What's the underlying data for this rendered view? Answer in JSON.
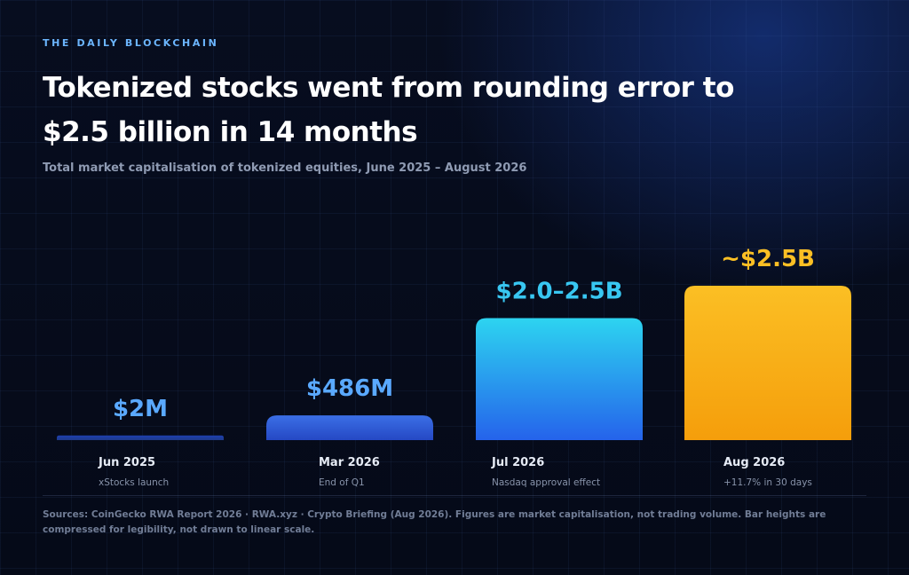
{
  "publication": "THE DAILY BLOCKCHAIN",
  "title_line1": "Tokenized stocks went from rounding error to",
  "title_line2": "$2.5 billion in 14 months",
  "subtitle": "Total market capitalisation of tokenized equities, June 2025 – August 2026",
  "sources": "Sources: CoinGecko RWA Report 2026 · RWA.xyz · Crypto Briefing (Aug 2026). Figures are market capitalisation, not trading volume. Bar heights are compressed for legibility, not drawn to linear scale.",
  "colors": {
    "background": "#060b1a",
    "blue_label": "#5aa9ff",
    "cyan_label": "#38c7f2",
    "gold_label": "#fbbf24"
  },
  "chart_data": {
    "type": "bar",
    "title": "Tokenized stocks went from rounding error to $2.5 billion in 14 months",
    "subtitle": "Total market capitalisation of tokenized equities, June 2025 – August 2026",
    "scale": "compressed, not linear",
    "categories": [
      "Jun 2025",
      "Mar 2026",
      "Jul 2026",
      "Aug 2026"
    ],
    "notes": [
      "xStocks launch",
      "End of Q1",
      "Nasdaq approval effect",
      "+11.7% in 30 days"
    ],
    "values_usd_millions": [
      2,
      486,
      2250,
      2500
    ],
    "data_labels": [
      "$2M",
      "$486M",
      "$2.0–2.5B",
      "~$2.5B"
    ],
    "display_levels": [
      0.03,
      0.16,
      0.79,
      1.0
    ],
    "bar_colors": [
      [
        "#1e40af",
        "#1e3a8a"
      ],
      [
        "#3b6fe6",
        "#2548c4"
      ],
      [
        "#2dd4f0",
        "#2563eb"
      ],
      [
        "#fbbf24",
        "#f59e0b"
      ]
    ],
    "label_colors": [
      "#5aa9ff",
      "#5aa9ff",
      "#38c7f2",
      "#fbbf24"
    ],
    "grid": false,
    "legend": "none"
  }
}
